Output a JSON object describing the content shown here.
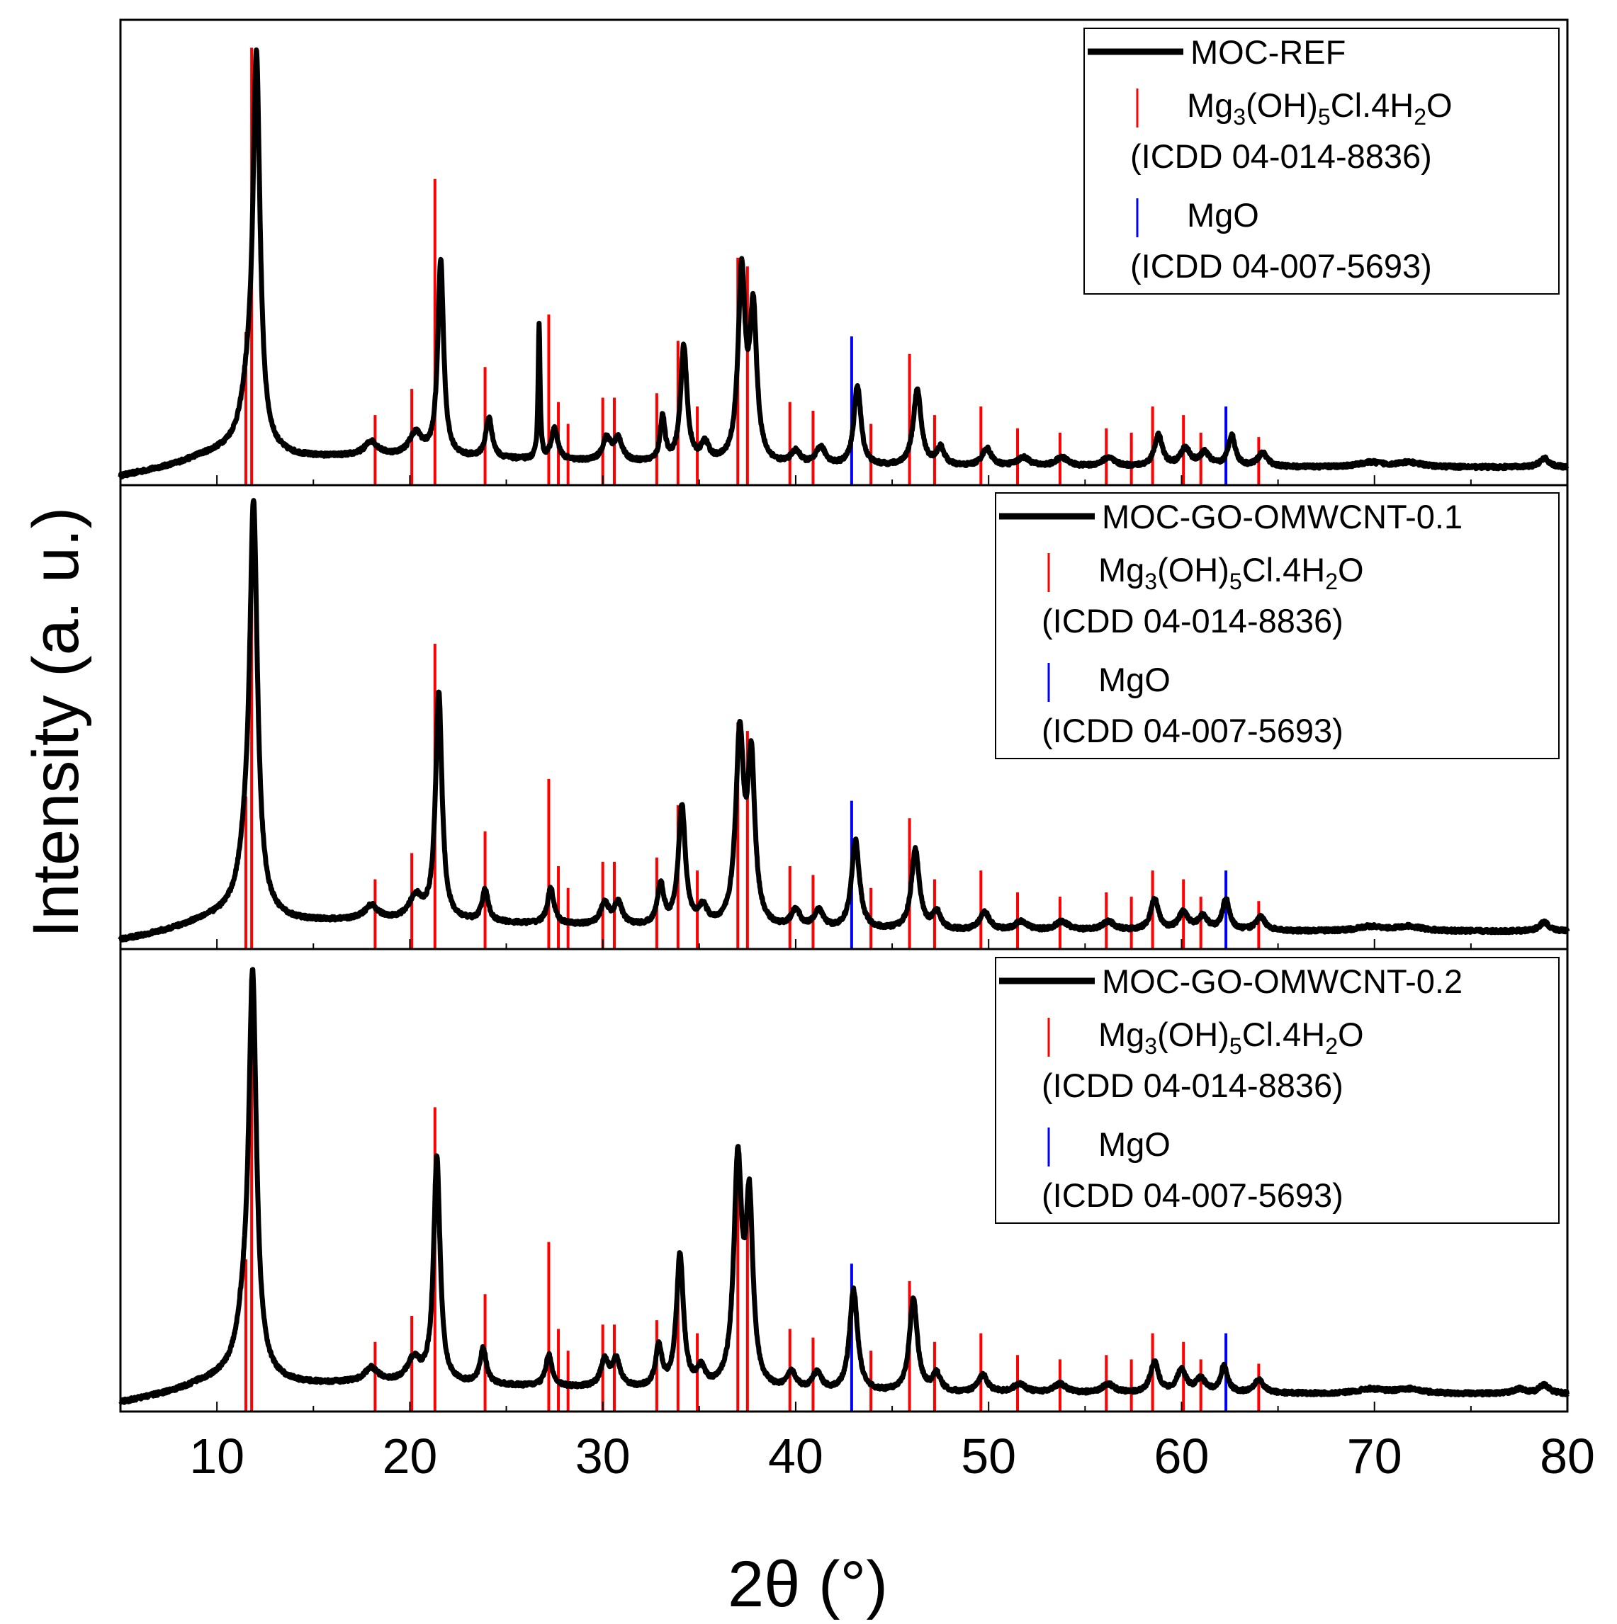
{
  "chart_data": {
    "type": "line",
    "figure_type": "stacked XRD patterns with reference stick markers",
    "xlabel": "2θ (°)",
    "ylabel": "Intensity (a. u.)",
    "xlim": [
      5,
      80
    ],
    "xticks": [
      10,
      20,
      30,
      40,
      50,
      60,
      70,
      80
    ],
    "tick_labels": [
      "10",
      "20",
      "30",
      "40",
      "50",
      "60",
      "70",
      "80"
    ],
    "reference_phases": [
      {
        "name_parts": [
          "Mg",
          "3",
          "(OH)",
          "5",
          "Cl.4H",
          "2",
          "O"
        ],
        "card": "(ICDD 04-014-8836)",
        "color": "#ff0000",
        "sticks": [
          {
            "x": 11.5,
            "h": 0.35
          },
          {
            "x": 11.8,
            "h": 1.0
          },
          {
            "x": 18.2,
            "h": 0.16
          },
          {
            "x": 20.1,
            "h": 0.22
          },
          {
            "x": 21.3,
            "h": 0.7
          },
          {
            "x": 23.9,
            "h": 0.27
          },
          {
            "x": 27.2,
            "h": 0.39
          },
          {
            "x": 27.7,
            "h": 0.19
          },
          {
            "x": 28.2,
            "h": 0.14
          },
          {
            "x": 30.0,
            "h": 0.2
          },
          {
            "x": 30.6,
            "h": 0.2
          },
          {
            "x": 32.8,
            "h": 0.21
          },
          {
            "x": 33.9,
            "h": 0.33
          },
          {
            "x": 34.9,
            "h": 0.18
          },
          {
            "x": 37.0,
            "h": 0.52
          },
          {
            "x": 37.5,
            "h": 0.5
          },
          {
            "x": 39.7,
            "h": 0.19
          },
          {
            "x": 40.9,
            "h": 0.17
          },
          {
            "x": 43.9,
            "h": 0.14
          },
          {
            "x": 45.9,
            "h": 0.3
          },
          {
            "x": 47.2,
            "h": 0.16
          },
          {
            "x": 49.6,
            "h": 0.18
          },
          {
            "x": 51.5,
            "h": 0.13
          },
          {
            "x": 53.7,
            "h": 0.12
          },
          {
            "x": 56.1,
            "h": 0.13
          },
          {
            "x": 57.4,
            "h": 0.12
          },
          {
            "x": 58.5,
            "h": 0.18
          },
          {
            "x": 60.1,
            "h": 0.16
          },
          {
            "x": 61.0,
            "h": 0.12
          },
          {
            "x": 64.0,
            "h": 0.11
          }
        ]
      },
      {
        "name_parts": [
          "MgO"
        ],
        "card": "(ICDD 04-007-5693)",
        "color": "#0000ff",
        "sticks": [
          {
            "x": 42.9,
            "h": 0.34
          },
          {
            "x": 62.3,
            "h": 0.18
          }
        ]
      }
    ],
    "series": [
      {
        "name": "MOC-REF",
        "color": "#000000",
        "baseline": 0.035,
        "peaks": [
          {
            "x": 11.6,
            "h": 0.1,
            "w": 0.45
          },
          {
            "x": 12.05,
            "h": 0.85,
            "w": 0.22
          },
          {
            "x": 18.0,
            "h": 0.03,
            "w": 0.4
          },
          {
            "x": 20.3,
            "h": 0.05,
            "w": 0.4
          },
          {
            "x": 21.6,
            "h": 0.44,
            "w": 0.18
          },
          {
            "x": 24.1,
            "h": 0.09,
            "w": 0.2
          },
          {
            "x": 26.7,
            "h": 0.3,
            "w": 0.06
          },
          {
            "x": 27.5,
            "h": 0.07,
            "w": 0.2
          },
          {
            "x": 30.2,
            "h": 0.05,
            "w": 0.25
          },
          {
            "x": 30.8,
            "h": 0.05,
            "w": 0.25
          },
          {
            "x": 33.1,
            "h": 0.1,
            "w": 0.15
          },
          {
            "x": 34.2,
            "h": 0.26,
            "w": 0.2
          },
          {
            "x": 35.3,
            "h": 0.04,
            "w": 0.25
          },
          {
            "x": 37.2,
            "h": 0.42,
            "w": 0.22
          },
          {
            "x": 37.8,
            "h": 0.33,
            "w": 0.22
          },
          {
            "x": 40.0,
            "h": 0.03,
            "w": 0.3
          },
          {
            "x": 41.3,
            "h": 0.04,
            "w": 0.3
          },
          {
            "x": 43.2,
            "h": 0.18,
            "w": 0.22
          },
          {
            "x": 46.3,
            "h": 0.17,
            "w": 0.25
          },
          {
            "x": 47.5,
            "h": 0.04,
            "w": 0.25
          },
          {
            "x": 49.9,
            "h": 0.04,
            "w": 0.3
          },
          {
            "x": 51.8,
            "h": 0.02,
            "w": 0.4
          },
          {
            "x": 53.8,
            "h": 0.02,
            "w": 0.4
          },
          {
            "x": 56.2,
            "h": 0.02,
            "w": 0.4
          },
          {
            "x": 58.8,
            "h": 0.07,
            "w": 0.25
          },
          {
            "x": 60.2,
            "h": 0.04,
            "w": 0.3
          },
          {
            "x": 61.2,
            "h": 0.03,
            "w": 0.3
          },
          {
            "x": 62.6,
            "h": 0.07,
            "w": 0.22
          },
          {
            "x": 64.2,
            "h": 0.03,
            "w": 0.3
          },
          {
            "x": 69.8,
            "h": 0.01,
            "w": 0.8
          },
          {
            "x": 71.8,
            "h": 0.01,
            "w": 0.8
          },
          {
            "x": 78.8,
            "h": 0.02,
            "w": 0.3
          }
        ]
      },
      {
        "name": "MOC-GO-OMWCNT-0.1",
        "color": "#000000",
        "baseline": 0.035,
        "peaks": [
          {
            "x": 11.5,
            "h": 0.1,
            "w": 0.45
          },
          {
            "x": 11.9,
            "h": 0.88,
            "w": 0.24
          },
          {
            "x": 18.0,
            "h": 0.03,
            "w": 0.4
          },
          {
            "x": 20.3,
            "h": 0.05,
            "w": 0.4
          },
          {
            "x": 21.5,
            "h": 0.51,
            "w": 0.2
          },
          {
            "x": 23.9,
            "h": 0.07,
            "w": 0.2
          },
          {
            "x": 27.3,
            "h": 0.08,
            "w": 0.2
          },
          {
            "x": 30.1,
            "h": 0.05,
            "w": 0.25
          },
          {
            "x": 30.8,
            "h": 0.05,
            "w": 0.25
          },
          {
            "x": 33.0,
            "h": 0.09,
            "w": 0.2
          },
          {
            "x": 34.1,
            "h": 0.27,
            "w": 0.22
          },
          {
            "x": 35.2,
            "h": 0.04,
            "w": 0.25
          },
          {
            "x": 37.1,
            "h": 0.42,
            "w": 0.25
          },
          {
            "x": 37.7,
            "h": 0.36,
            "w": 0.22
          },
          {
            "x": 40.0,
            "h": 0.04,
            "w": 0.3
          },
          {
            "x": 41.2,
            "h": 0.04,
            "w": 0.3
          },
          {
            "x": 43.1,
            "h": 0.2,
            "w": 0.25
          },
          {
            "x": 46.2,
            "h": 0.18,
            "w": 0.25
          },
          {
            "x": 47.3,
            "h": 0.04,
            "w": 0.25
          },
          {
            "x": 49.8,
            "h": 0.04,
            "w": 0.3
          },
          {
            "x": 51.7,
            "h": 0.02,
            "w": 0.4
          },
          {
            "x": 53.8,
            "h": 0.02,
            "w": 0.4
          },
          {
            "x": 56.2,
            "h": 0.02,
            "w": 0.4
          },
          {
            "x": 58.6,
            "h": 0.07,
            "w": 0.25
          },
          {
            "x": 60.1,
            "h": 0.04,
            "w": 0.3
          },
          {
            "x": 61.1,
            "h": 0.03,
            "w": 0.3
          },
          {
            "x": 62.3,
            "h": 0.07,
            "w": 0.22
          },
          {
            "x": 64.1,
            "h": 0.03,
            "w": 0.3
          },
          {
            "x": 69.8,
            "h": 0.01,
            "w": 0.8
          },
          {
            "x": 71.8,
            "h": 0.01,
            "w": 0.8
          },
          {
            "x": 78.8,
            "h": 0.02,
            "w": 0.3
          }
        ]
      },
      {
        "name": "MOC-GO-OMWCNT-0.2",
        "color": "#000000",
        "baseline": 0.035,
        "peaks": [
          {
            "x": 11.4,
            "h": 0.1,
            "w": 0.45
          },
          {
            "x": 11.85,
            "h": 0.87,
            "w": 0.24
          },
          {
            "x": 18.0,
            "h": 0.03,
            "w": 0.4
          },
          {
            "x": 20.2,
            "h": 0.05,
            "w": 0.4
          },
          {
            "x": 21.4,
            "h": 0.51,
            "w": 0.2
          },
          {
            "x": 23.8,
            "h": 0.08,
            "w": 0.2
          },
          {
            "x": 27.2,
            "h": 0.07,
            "w": 0.2
          },
          {
            "x": 30.1,
            "h": 0.06,
            "w": 0.25
          },
          {
            "x": 30.7,
            "h": 0.06,
            "w": 0.25
          },
          {
            "x": 32.9,
            "h": 0.09,
            "w": 0.2
          },
          {
            "x": 34.0,
            "h": 0.3,
            "w": 0.22
          },
          {
            "x": 35.1,
            "h": 0.04,
            "w": 0.25
          },
          {
            "x": 37.0,
            "h": 0.5,
            "w": 0.25
          },
          {
            "x": 37.6,
            "h": 0.4,
            "w": 0.22
          },
          {
            "x": 39.8,
            "h": 0.04,
            "w": 0.3
          },
          {
            "x": 41.1,
            "h": 0.04,
            "w": 0.3
          },
          {
            "x": 43.0,
            "h": 0.23,
            "w": 0.25
          },
          {
            "x": 46.1,
            "h": 0.21,
            "w": 0.25
          },
          {
            "x": 47.3,
            "h": 0.04,
            "w": 0.25
          },
          {
            "x": 49.7,
            "h": 0.04,
            "w": 0.3
          },
          {
            "x": 51.6,
            "h": 0.02,
            "w": 0.4
          },
          {
            "x": 53.7,
            "h": 0.02,
            "w": 0.4
          },
          {
            "x": 56.2,
            "h": 0.02,
            "w": 0.4
          },
          {
            "x": 58.6,
            "h": 0.07,
            "w": 0.25
          },
          {
            "x": 60.0,
            "h": 0.05,
            "w": 0.3
          },
          {
            "x": 61.0,
            "h": 0.03,
            "w": 0.3
          },
          {
            "x": 62.2,
            "h": 0.06,
            "w": 0.22
          },
          {
            "x": 64.0,
            "h": 0.03,
            "w": 0.3
          },
          {
            "x": 69.8,
            "h": 0.01,
            "w": 0.8
          },
          {
            "x": 71.8,
            "h": 0.01,
            "w": 0.8
          },
          {
            "x": 77.5,
            "h": 0.01,
            "w": 0.4
          },
          {
            "x": 78.8,
            "h": 0.02,
            "w": 0.3
          }
        ]
      }
    ]
  }
}
